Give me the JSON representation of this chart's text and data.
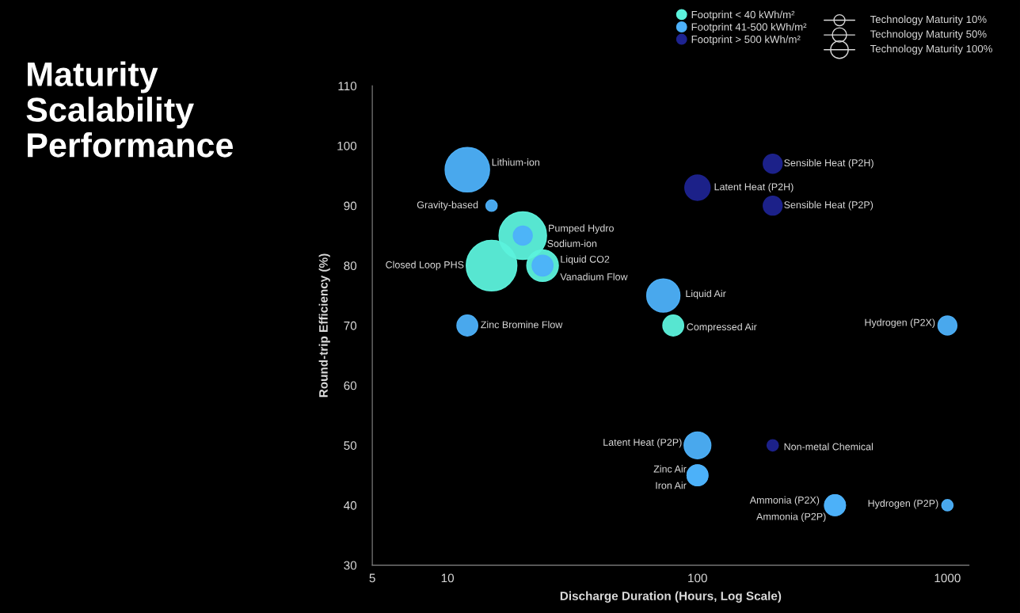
{
  "chart_data": {
    "type": "bubble",
    "title": "Maturity\nScalability\nPerformance",
    "xlabel": "Discharge Duration (Hours, Log Scale)",
    "ylabel": "Round-trip Efficiency (%)",
    "log": "x",
    "xlim": [
      5,
      1220
    ],
    "xticks": [
      5,
      10,
      100,
      1000
    ],
    "ylim": [
      30,
      110
    ],
    "yticks": [
      30,
      40,
      50,
      60,
      70,
      80,
      90,
      100,
      110
    ],
    "grid": false,
    "legend": "top right",
    "marker": "circle",
    "series": [
      {
        "name": "Footprint < 40 kWh/m²",
        "color": "#5cf2dc",
        "x": [
          20,
          15,
          24,
          80
        ],
        "values": [
          85,
          80,
          80,
          70
        ],
        "sizes": [
          0.88,
          1,
          0.39,
          0.17
        ]
      },
      {
        "name": "Footprint 41-500 kWh/m²",
        "color": "#4db1fa",
        "x": [
          12,
          15,
          20,
          24,
          12,
          73,
          1000,
          100,
          100,
          100,
          355,
          355,
          1000
        ],
        "values": [
          96,
          90,
          85,
          80,
          70,
          75,
          70,
          50,
          45,
          45,
          40,
          40,
          40
        ],
        "sizes": [
          0.77,
          0.05,
          0.14,
          0.17,
          0.17,
          0.43,
          0.14,
          0.28,
          0.17,
          0.17,
          0.17,
          0.17,
          0.05
        ]
      },
      {
        "name": "Footprint > 500 kWh/m²",
        "color": "#1e2390",
        "x": [
          100,
          200,
          200,
          200
        ],
        "values": [
          93,
          97,
          90,
          50
        ],
        "sizes": [
          0.25,
          0.14,
          0.14,
          0.05
        ]
      }
    ],
    "annotations": [
      "Technology Maturity 10%",
      "Technology Maturity 50%",
      "Technology Maturity 100%",
      {
        "text": "Lithium-ion",
        "x": 12,
        "y": 96
      },
      {
        "text": "Gravity-based",
        "x": 15,
        "y": 90
      },
      {
        "text": "Pumped Hydro",
        "x": 20,
        "y": 85
      },
      {
        "text": "Sodium-ion",
        "x": 20,
        "y": 85
      },
      {
        "text": "Closed Loop PHS",
        "x": 15,
        "y": 80
      },
      {
        "text": "Liquid CO2",
        "x": 24,
        "y": 80
      },
      {
        "text": "Vanadium Flow",
        "x": 24,
        "y": 80
      },
      {
        "text": "Zinc Bromine Flow",
        "x": 12,
        "y": 70
      },
      {
        "text": "Liquid Air",
        "x": 73,
        "y": 75
      },
      {
        "text": "Compressed Air",
        "x": 80,
        "y": 70
      },
      {
        "text": "Latent Heat (P2H)",
        "x": 100,
        "y": 93
      },
      {
        "text": "Sensible Heat (P2H)",
        "x": 200,
        "y": 97
      },
      {
        "text": "Sensible Heat (P2P)",
        "x": 200,
        "y": 90
      },
      {
        "text": "Hydrogen (P2X)",
        "x": 1000,
        "y": 70
      },
      {
        "text": "Latent Heat (P2P)",
        "x": 100,
        "y": 50
      },
      {
        "text": "Non-metal Chemical",
        "x": 200,
        "y": 50
      },
      {
        "text": "Zinc Air",
        "x": 100,
        "y": 45
      },
      {
        "text": "Iron Air",
        "x": 100,
        "y": 45
      },
      {
        "text": "Ammonia (P2X)",
        "x": 355,
        "y": 40
      },
      {
        "text": "Ammonia (P2P)",
        "x": 355,
        "y": 40
      },
      {
        "text": "Hydrogen (P2P)",
        "x": 1000,
        "y": 40
      }
    ]
  }
}
